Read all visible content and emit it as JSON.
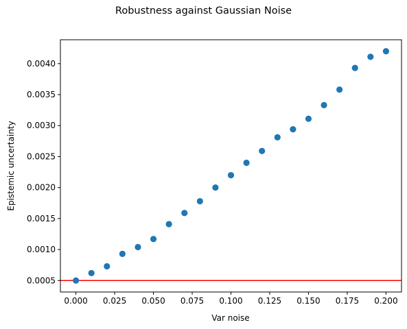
{
  "chart_data": {
    "type": "scatter",
    "title": "Robustness against Gaussian Noise",
    "xlabel": "Var noise",
    "ylabel": "Epistemic uncertainty",
    "xlim": [
      -0.01,
      0.21
    ],
    "ylim": [
      0.000315,
      0.004385
    ],
    "x_ticks": [
      0.0,
      0.025,
      0.05,
      0.075,
      0.1,
      0.125,
      0.15,
      0.175,
      0.2
    ],
    "x_tick_labels": [
      "0.000",
      "0.025",
      "0.050",
      "0.075",
      "0.100",
      "0.125",
      "0.150",
      "0.175",
      "0.200"
    ],
    "y_ticks": [
      0.0005,
      0.001,
      0.0015,
      0.002,
      0.0025,
      0.003,
      0.0035,
      0.004
    ],
    "y_tick_labels": [
      "0.0005",
      "0.0010",
      "0.0015",
      "0.0020",
      "0.0025",
      "0.0030",
      "0.0035",
      "0.0040"
    ],
    "grid": false,
    "series": [
      {
        "color": "#1f77b4",
        "x": [
          0.0,
          0.01,
          0.02,
          0.03,
          0.04,
          0.05,
          0.06,
          0.07,
          0.08,
          0.09,
          0.1,
          0.11,
          0.12,
          0.13,
          0.14,
          0.15,
          0.16,
          0.17,
          0.18,
          0.19,
          0.2
        ],
        "y": [
          0.0005,
          0.00062,
          0.00073,
          0.00093,
          0.00104,
          0.00117,
          0.00141,
          0.00159,
          0.00178,
          0.002,
          0.0022,
          0.0024,
          0.00259,
          0.00281,
          0.00294,
          0.00311,
          0.00333,
          0.00358,
          0.00393,
          0.00411,
          0.0042
        ]
      }
    ],
    "hline": {
      "y": 0.0005,
      "color": "#ff0000"
    }
  }
}
